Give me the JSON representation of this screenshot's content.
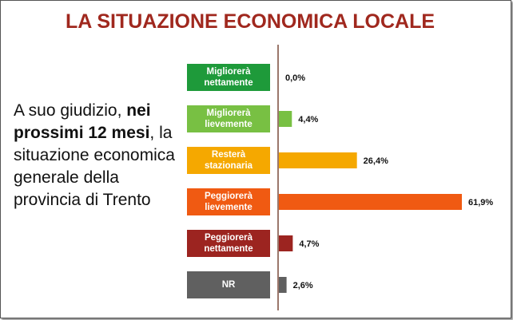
{
  "title": "LA SITUAZIONE ECONOMICA LOCALE",
  "question_parts": [
    "A suo giudizio, ",
    "nei prossimi 12 mesi",
    ", la situazione economica generale della provincia di Trento"
  ],
  "chart_data": {
    "type": "bar",
    "orientation": "horizontal",
    "categories": [
      "Migliorerà nettamente",
      "Migliorerà lievemente",
      "Resterà stazionaria",
      "Peggiorerà lievemente",
      "Peggiorerà nettamente",
      "NR"
    ],
    "values": [
      0.0,
      4.4,
      26.4,
      61.9,
      4.7,
      2.6
    ],
    "value_labels": [
      "0,0%",
      "4,4%",
      "26,4%",
      "61,9%",
      "4,7%",
      "2,6%"
    ],
    "colors": [
      "#1e9a3a",
      "#78c043",
      "#f5a800",
      "#f05a12",
      "#9c2420",
      "#606060"
    ]
  }
}
